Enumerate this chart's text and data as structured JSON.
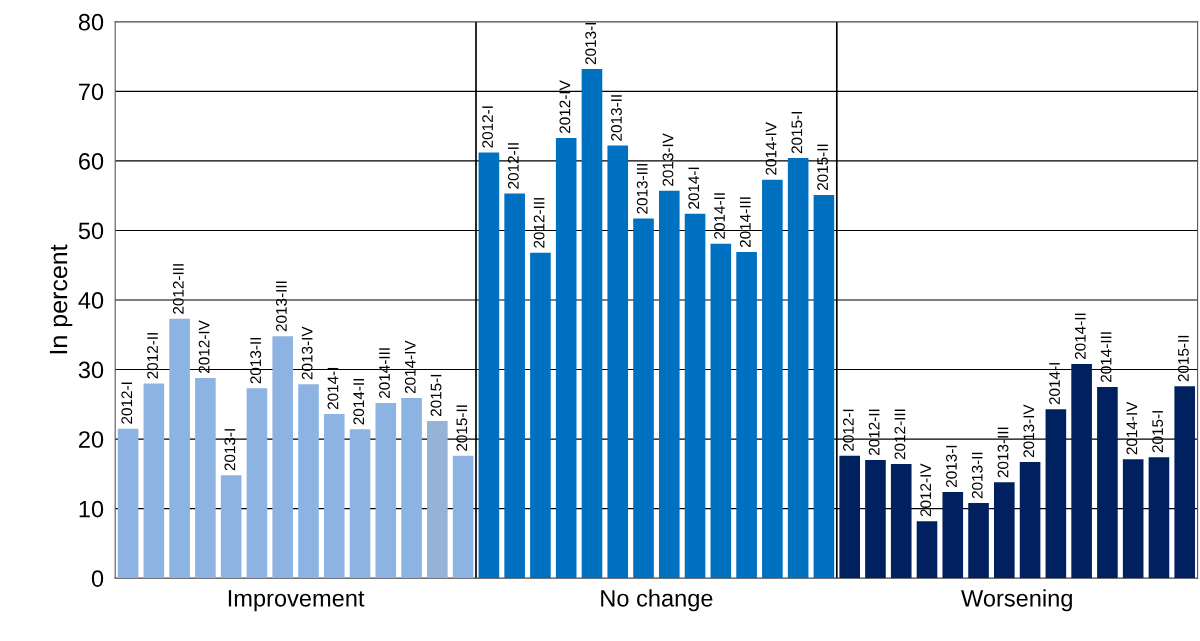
{
  "chart_data": {
    "type": "bar",
    "ylabel": "In percent",
    "categories": [
      "Improvement",
      "No change",
      "Worsening"
    ],
    "series": [
      {
        "name": "2012-I",
        "colors": [
          "#8db3e2",
          "#0070c0",
          "#002060"
        ],
        "values": [
          21.5,
          61.2,
          17.6
        ]
      },
      {
        "name": "2012-II",
        "colors": [
          "#8db3e2",
          "#0070c0",
          "#002060"
        ],
        "values": [
          28.0,
          55.3,
          17.0
        ]
      },
      {
        "name": "2012-III",
        "colors": [
          "#8db3e2",
          "#0070c0",
          "#002060"
        ],
        "values": [
          37.3,
          46.8,
          16.4
        ]
      },
      {
        "name": "2012-IV",
        "colors": [
          "#8db3e2",
          "#0070c0",
          "#002060"
        ],
        "values": [
          28.8,
          63.3,
          8.2
        ]
      },
      {
        "name": "2013-I",
        "colors": [
          "#8db3e2",
          "#0070c0",
          "#002060"
        ],
        "values": [
          14.8,
          73.2,
          12.4
        ]
      },
      {
        "name": "2013-II",
        "colors": [
          "#8db3e2",
          "#0070c0",
          "#002060"
        ],
        "values": [
          27.3,
          62.2,
          10.8
        ]
      },
      {
        "name": "2013-III",
        "colors": [
          "#8db3e2",
          "#0070c0",
          "#002060"
        ],
        "values": [
          34.8,
          51.7,
          13.8
        ]
      },
      {
        "name": "2013-IV",
        "colors": [
          "#8db3e2",
          "#0070c0",
          "#002060"
        ],
        "values": [
          27.9,
          55.7,
          16.7
        ]
      },
      {
        "name": "2014-I",
        "colors": [
          "#8db3e2",
          "#0070c0",
          "#002060"
        ],
        "values": [
          23.6,
          52.4,
          24.3
        ]
      },
      {
        "name": "2014-II",
        "colors": [
          "#8db3e2",
          "#0070c0",
          "#002060"
        ],
        "values": [
          21.4,
          48.1,
          30.8
        ]
      },
      {
        "name": "2014-III",
        "colors": [
          "#8db3e2",
          "#0070c0",
          "#002060"
        ],
        "values": [
          25.2,
          46.9,
          27.5
        ]
      },
      {
        "name": "2014-IV",
        "colors": [
          "#8db3e2",
          "#0070c0",
          "#002060"
        ],
        "values": [
          25.9,
          57.3,
          17.1
        ]
      },
      {
        "name": "2015-I",
        "colors": [
          "#95b3d7",
          "#0070c0",
          "#002060"
        ],
        "values": [
          22.6,
          60.4,
          17.4
        ]
      },
      {
        "name": "2015-II",
        "colors": [
          "#8db3e2",
          "#0070c0",
          "#002060"
        ],
        "values": [
          17.6,
          55.1,
          27.6
        ]
      }
    ],
    "ylim": [
      0,
      80
    ],
    "yticks": [
      0,
      10,
      20,
      30,
      40,
      50,
      60,
      70,
      80
    ],
    "grid": "y",
    "legend": false
  }
}
